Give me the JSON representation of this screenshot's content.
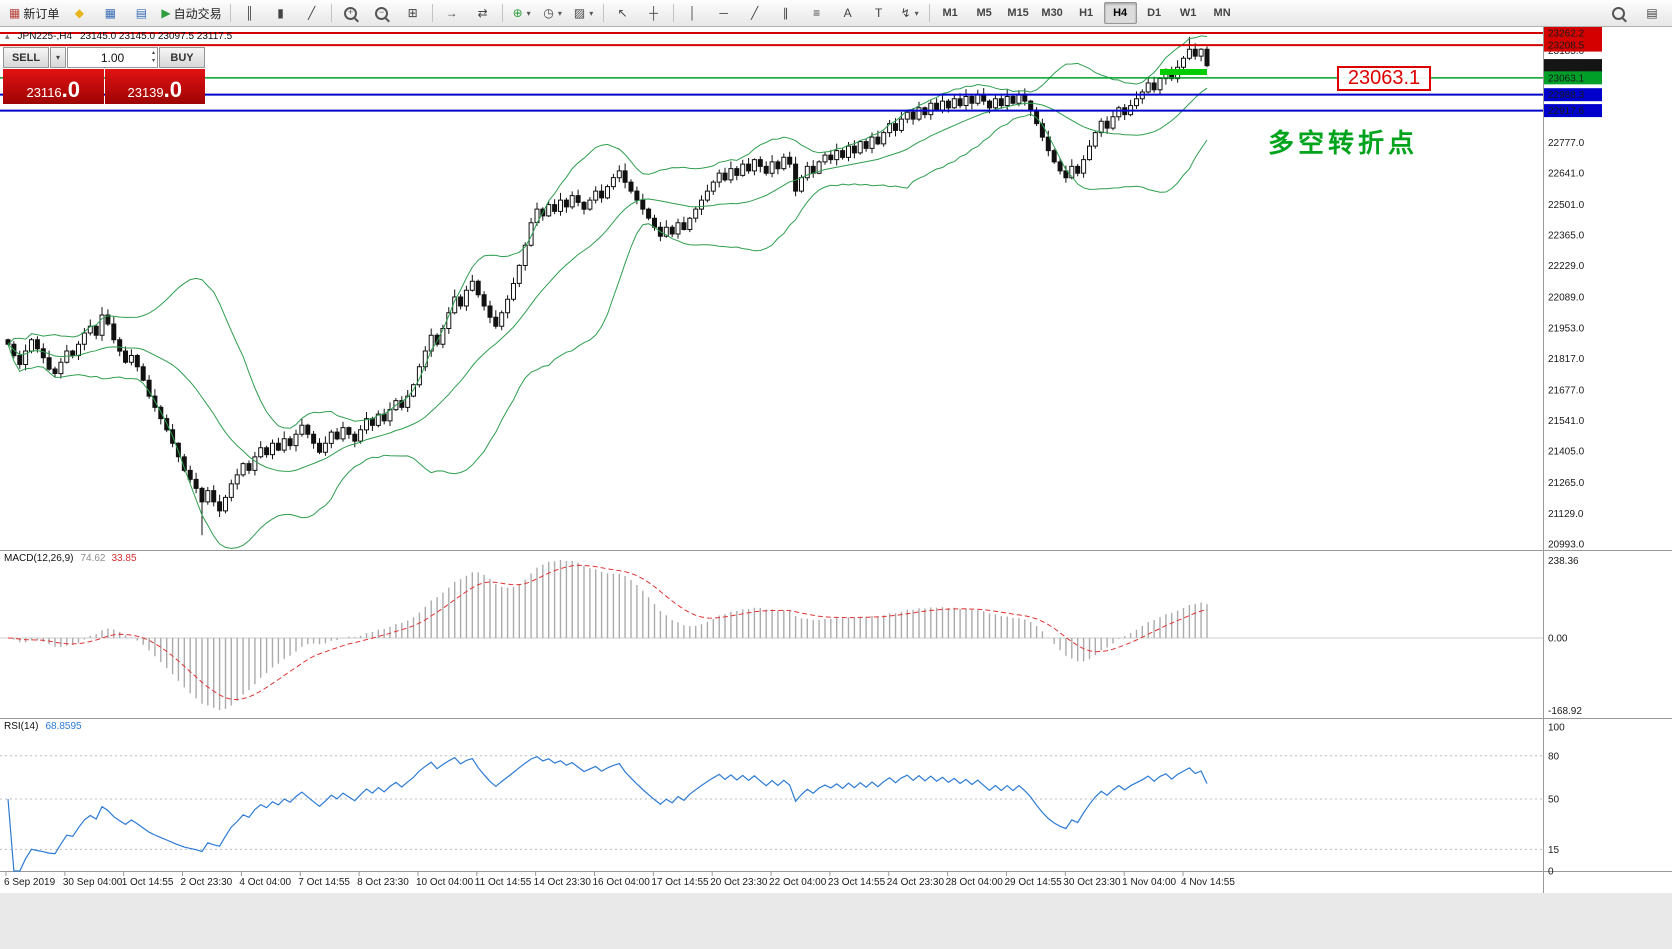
{
  "toolbar": {
    "items": [
      {
        "name": "new-order-button",
        "glyph": "▦",
        "color": "#b8433c",
        "label": "新订单"
      },
      {
        "name": "metaeditor-button",
        "glyph": "◆",
        "color": "#e8b41c"
      },
      {
        "name": "market-watch-button",
        "glyph": "▦",
        "color": "#3b6fb5"
      },
      {
        "name": "navigator-button",
        "glyph": "▤",
        "color": "#3b6fb5"
      },
      {
        "name": "autotrading-button",
        "glyph": "▶",
        "color": "#2e9e3f",
        "label": "自动交易"
      },
      {
        "sep": true
      },
      {
        "name": "bar-chart-button",
        "glyph": "║"
      },
      {
        "name": "candlestick-chart-button",
        "glyph": "▮"
      },
      {
        "name": "line-chart-button",
        "glyph": "╱"
      },
      {
        "sep": true
      },
      {
        "name": "zoom-in-button",
        "mag": true,
        "sign": "+"
      },
      {
        "name": "zoom-out-button",
        "mag": true,
        "sign": "−"
      },
      {
        "name": "tile-windows-button",
        "glyph": "⊞"
      },
      {
        "sep": true
      },
      {
        "name": "auto-scroll-button",
        "glyph": "→"
      },
      {
        "name": "chart-shift-button",
        "glyph": "⇄"
      },
      {
        "sep": true
      },
      {
        "name": "indicators-button",
        "glyph": "⊕",
        "color": "#2e9e3f",
        "caret": true
      },
      {
        "name": "periods-button",
        "glyph": "◷",
        "caret": true
      },
      {
        "name": "templates-button",
        "glyph": "▨",
        "caret": true
      },
      {
        "sep": true
      },
      {
        "name": "cursor-button",
        "glyph": "↖"
      },
      {
        "name": "crosshair-button",
        "glyph": "┼"
      },
      {
        "sep": true
      },
      {
        "name": "vertical-line-button",
        "glyph": "│"
      },
      {
        "name": "horizontal-line-button",
        "glyph": "─"
      },
      {
        "name": "trendline-button",
        "glyph": "╱"
      },
      {
        "name": "channel-button",
        "glyph": "∥"
      },
      {
        "name": "fibonacci-button",
        "glyph": "≡"
      },
      {
        "name": "text-button",
        "glyph": "A"
      },
      {
        "name": "text-label-button",
        "glyph": "T"
      },
      {
        "name": "arrows-button",
        "glyph": "↯",
        "caret": true
      }
    ],
    "timeframes": [
      "M1",
      "M5",
      "M15",
      "M30",
      "H1",
      "H4",
      "D1",
      "W1",
      "MN"
    ],
    "active_timeframe": "H4",
    "right_items": [
      {
        "name": "search-button",
        "mag": true,
        "sign": ""
      },
      {
        "name": "window-list-button",
        "glyph": "▤"
      }
    ]
  },
  "icons": {
    "chevron_down": "▾",
    "spin_up": "▴",
    "spin_down": "▾",
    "one_click_toggle": "▴"
  },
  "colors": {
    "bollinger": "#2f9e4f",
    "macd_histogram": "#ababab",
    "macd_signal": "#e03434",
    "rsi_line": "#2c7bd4",
    "callout_red": "#dd0000",
    "note_green": "#00a31c",
    "bear_candle": "#111111",
    "bull_candle": "#ffffff"
  },
  "chart": {
    "title": "JPN225-,H4",
    "ohlc": "23145.0 23145.0 23097.5 23117.5",
    "one_click": {
      "sell_label": "SELL",
      "buy_label": "BUY",
      "volume": "1.00",
      "sell_price_main": "23116",
      "sell_price_frac": ".0",
      "buy_price_main": "23139",
      "buy_price_frac": ".0"
    },
    "annotation_price": "23063.1",
    "annotation_note": "多空转折点"
  },
  "chart_data": {
    "type": "candlestick",
    "symbol": "JPN225-",
    "period": "H4",
    "y_axis": {
      "top_price": 23262.2,
      "bottom_price": 20993.0
    },
    "y_ticks": [
      {
        "label": "23185.0",
        "price": 23185.0
      },
      {
        "label": "22777.0",
        "price": 22777.0
      },
      {
        "label": "22641.0",
        "price": 22641.0
      },
      {
        "label": "22501.0",
        "price": 22501.0
      },
      {
        "label": "22365.0",
        "price": 22365.0
      },
      {
        "label": "22229.0",
        "price": 22229.0
      },
      {
        "label": "22089.0",
        "price": 22089.0
      },
      {
        "label": "21953.0",
        "price": 21953.0
      },
      {
        "label": "21817.0",
        "price": 21817.0
      },
      {
        "label": "21677.0",
        "price": 21677.0
      },
      {
        "label": "21541.0",
        "price": 21541.0
      },
      {
        "label": "21405.0",
        "price": 21405.0
      },
      {
        "label": "21265.0",
        "price": 21265.0
      },
      {
        "label": "21129.0",
        "price": 21129.0
      },
      {
        "label": "20993.0",
        "price": 20993.0
      }
    ],
    "levels": [
      {
        "price": 23262.2,
        "label": "23262.2",
        "color": "#d40000",
        "width": 2,
        "line": true
      },
      {
        "price": 23208.5,
        "label": "23208.5",
        "color": "#d40000",
        "width": 2,
        "line": true
      },
      {
        "price": 23117.5,
        "label": "23117.5",
        "color": "#151515",
        "width": 1,
        "line": false
      },
      {
        "price": 23063.1,
        "label": "23063.1",
        "color": "#00a028",
        "width": 1.5,
        "line": true
      },
      {
        "price": 22988.3,
        "label": "22988.3",
        "color": "#0000cc",
        "width": 2,
        "line": true
      },
      {
        "price": 22917.6,
        "label": "22917.6",
        "color": "#0000cc",
        "width": 2,
        "line": true
      }
    ],
    "highlight": {
      "price": 23089,
      "from_index": 196,
      "to_index": 204,
      "color": "#00cc00",
      "width": 6
    },
    "close": [
      21880,
      21830,
      21790,
      21850,
      21900,
      21860,
      21820,
      21770,
      21750,
      21800,
      21850,
      21830,
      21880,
      21930,
      21960,
      21920,
      22010,
      21970,
      21900,
      21850,
      21800,
      21830,
      21780,
      21720,
      21650,
      21600,
      21550,
      21500,
      21440,
      21380,
      21320,
      21280,
      21240,
      21180,
      21230,
      21180,
      21140,
      21200,
      21260,
      21300,
      21350,
      21320,
      21380,
      21420,
      21390,
      21440,
      21410,
      21460,
      21430,
      21480,
      21520,
      21480,
      21440,
      21400,
      21440,
      21490,
      21460,
      21510,
      21480,
      21450,
      21500,
      21550,
      21520,
      21570,
      21540,
      21590,
      21630,
      21600,
      21650,
      21700,
      21780,
      21850,
      21920,
      21880,
      21950,
      22020,
      22090,
      22050,
      22120,
      22160,
      22100,
      22050,
      22000,
      21960,
      22020,
      22080,
      22150,
      22230,
      22320,
      22420,
      22480,
      22450,
      22500,
      22470,
      22520,
      22490,
      22540,
      22510,
      22480,
      22520,
      22560,
      22530,
      22580,
      22620,
      22650,
      22600,
      22560,
      22520,
      22480,
      22440,
      22400,
      22360,
      22400,
      22370,
      22420,
      22390,
      22440,
      22480,
      22520,
      22560,
      22600,
      22640,
      22610,
      22660,
      22630,
      22680,
      22650,
      22700,
      22670,
      22640,
      22690,
      22660,
      22710,
      22680,
      22560,
      22620,
      22670,
      22640,
      22690,
      22720,
      22700,
      22740,
      22710,
      22760,
      22730,
      22780,
      22750,
      22800,
      22770,
      22820,
      22860,
      22830,
      22880,
      22910,
      22880,
      22930,
      22900,
      22950,
      22920,
      22960,
      22930,
      22970,
      22940,
      22980,
      22950,
      22990,
      22960,
      22930,
      22970,
      22940,
      22980,
      22950,
      22990,
      22960,
      22920,
      22860,
      22800,
      22740,
      22690,
      22650,
      22620,
      22670,
      22640,
      22700,
      22760,
      22820,
      22870,
      22840,
      22890,
      22930,
      22900,
      22940,
      22970,
      23000,
      23040,
      23010,
      23060,
      23090,
      23060,
      23110,
      23150,
      23190,
      23160,
      23190,
      23117.5
    ],
    "wick_overrides": {
      "16": {
        "high": 22045
      },
      "33": {
        "low": 21032
      },
      "201": {
        "high": 23245
      }
    },
    "x_labels": [
      "6 Sep 2019",
      "30 Sep 04:00",
      "1 Oct 14:55",
      "2 Oct 23:30",
      "4 Oct 04:00",
      "7 Oct 14:55",
      "8 Oct 23:30",
      "10 Oct 04:00",
      "11 Oct 14:55",
      "14 Oct 23:30",
      "16 Oct 04:00",
      "17 Oct 14:55",
      "20 Oct 23:30",
      "22 Oct 04:00",
      "23 Oct 14:55",
      "24 Oct 23:30",
      "28 Oct 04:00",
      "29 Oct 14:55",
      "30 Oct 23:30",
      "1 Nov 04:00",
      "4 Nov 14:55"
    ],
    "bollinger": {
      "period": 20,
      "deviation": 2
    },
    "macd": {
      "name": "MACD(12,26,9)",
      "value_main": "74.62",
      "value_signal": "33.85",
      "fast": 12,
      "slow": 26,
      "signal": 9,
      "axis": [
        "238.36",
        "0.00",
        "-168.92"
      ]
    },
    "rsi": {
      "name": "RSI(14)",
      "value": "68.8595",
      "period": 14,
      "levels": [
        80,
        50,
        15
      ],
      "axis": [
        {
          "label": "100",
          "value": 100
        },
        {
          "label": "80",
          "value": 80
        },
        {
          "label": "50",
          "value": 50
        },
        {
          "label": "15",
          "value": 15
        },
        {
          "label": "0",
          "value": 0
        }
      ]
    }
  }
}
